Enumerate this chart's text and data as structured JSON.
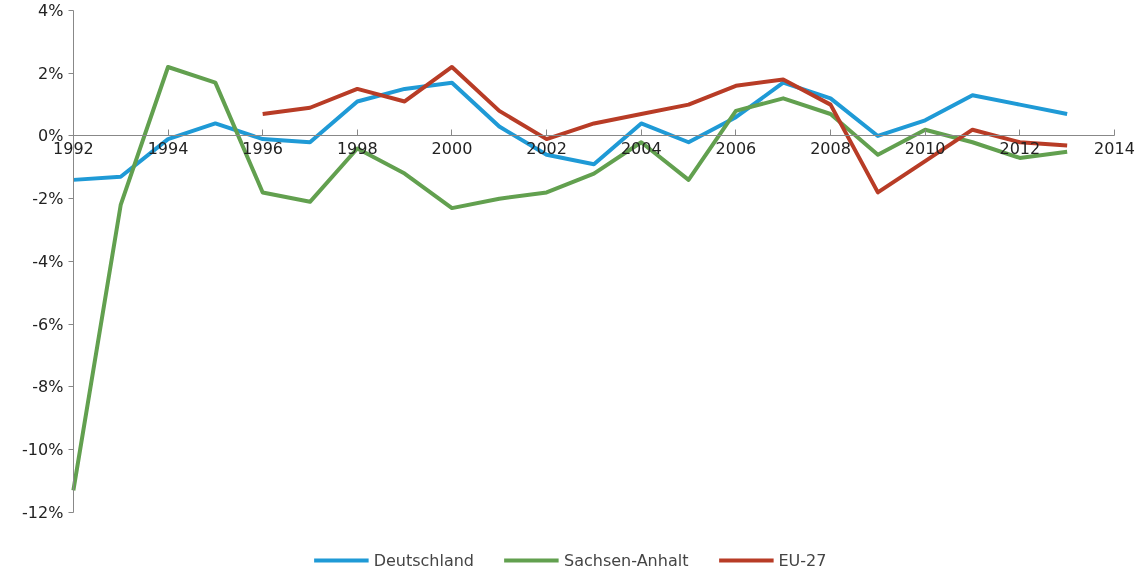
{
  "chart_data": {
    "type": "line",
    "x": [
      1992,
      1993,
      1994,
      1995,
      1996,
      1997,
      1998,
      1999,
      2000,
      2001,
      2002,
      2003,
      2004,
      2005,
      2006,
      2007,
      2008,
      2009,
      2010,
      2011,
      2012,
      2013
    ],
    "series": [
      {
        "name": "Deutschland",
        "color": "#1f9ad6",
        "values": [
          -1.4,
          -1.3,
          -0.1,
          0.4,
          -0.1,
          -0.2,
          1.1,
          1.5,
          1.7,
          0.3,
          -0.6,
          -0.9,
          0.4,
          -0.2,
          0.6,
          1.7,
          1.2,
          0,
          0.5,
          1.3,
          1.0,
          0.7
        ]
      },
      {
        "name": "Sachsen-Anhalt",
        "color": "#62a04f",
        "values": [
          -11.3,
          -2.2,
          2.2,
          1.7,
          -1.8,
          -2.1,
          -0.4,
          -1.2,
          -2.3,
          -2.0,
          -1.8,
          -1.2,
          -0.2,
          -1.4,
          0.8,
          1.2,
          0.7,
          -0.6,
          0.2,
          -0.2,
          -0.7,
          -0.5
        ]
      },
      {
        "name": "EU-27",
        "color": "#b83c26",
        "values": [
          null,
          null,
          null,
          null,
          0.7,
          0.9,
          1.5,
          1.1,
          2.2,
          0.8,
          -0.1,
          0.4,
          0.7,
          1.0,
          1.6,
          1.8,
          1.0,
          -1.8,
          -0.8,
          0.2,
          -0.2,
          -0.3
        ]
      }
    ],
    "xlim": [
      1992,
      2014
    ],
    "xticks": [
      1992,
      1994,
      1996,
      1998,
      2000,
      2002,
      2004,
      2006,
      2008,
      2010,
      2012,
      2014
    ],
    "ylim": [
      -12,
      4
    ],
    "yticks": [
      {
        "value": -12,
        "label": "-12%"
      },
      {
        "value": -10,
        "label": "-10%"
      },
      {
        "value": -8,
        "label": "-8%"
      },
      {
        "value": -6,
        "label": "-6%"
      },
      {
        "value": -4,
        "label": "-4%"
      },
      {
        "value": -2,
        "label": "-2%"
      },
      {
        "value": 0,
        "label": "0%"
      },
      {
        "value": 2,
        "label": "2%"
      },
      {
        "value": 4,
        "label": "4%"
      }
    ],
    "grid": false,
    "legend": "bottom",
    "marker": "none",
    "line_style": "solid"
  }
}
